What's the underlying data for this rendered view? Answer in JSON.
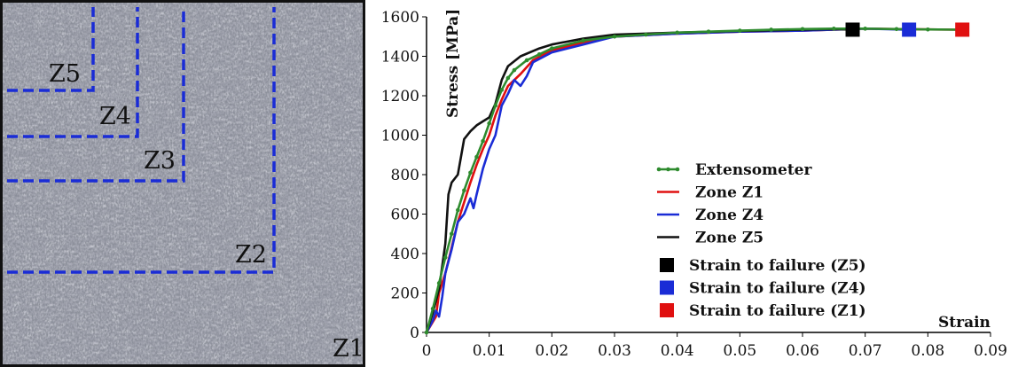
{
  "micrograph": {
    "zone_labels": [
      "Z5",
      "Z4",
      "Z3",
      "Z2",
      "Z1"
    ],
    "zone_line_color": "#1a2cd6"
  },
  "chart_data": {
    "type": "line",
    "xlabel": "Strain",
    "ylabel": "Stress [MPa]",
    "xlim": [
      0,
      0.09
    ],
    "ylim": [
      0,
      1600
    ],
    "x_ticks": [
      "0",
      "0.01",
      "0.02",
      "0.03",
      "0.04",
      "0.05",
      "0.06",
      "0.07",
      "0.08",
      "0.09"
    ],
    "y_ticks": [
      "0",
      "200",
      "400",
      "600",
      "800",
      "1000",
      "1200",
      "1400",
      "1600"
    ],
    "x_tick_values": [
      0,
      0.01,
      0.02,
      0.03,
      0.04,
      0.05,
      0.06,
      0.07,
      0.08,
      0.09
    ],
    "y_tick_values": [
      0,
      200,
      400,
      600,
      800,
      1000,
      1200,
      1400,
      1600
    ],
    "legend_position": "lower-center",
    "series": [
      {
        "name": "Extensometer",
        "color": "#2e8b2e",
        "markers": true,
        "points": [
          [
            0,
            0
          ],
          [
            0.001,
            120
          ],
          [
            0.002,
            250
          ],
          [
            0.003,
            380
          ],
          [
            0.004,
            500
          ],
          [
            0.005,
            620
          ],
          [
            0.006,
            720
          ],
          [
            0.007,
            810
          ],
          [
            0.008,
            890
          ],
          [
            0.009,
            970
          ],
          [
            0.01,
            1060
          ],
          [
            0.011,
            1150
          ],
          [
            0.012,
            1230
          ],
          [
            0.013,
            1290
          ],
          [
            0.014,
            1330
          ],
          [
            0.016,
            1380
          ],
          [
            0.018,
            1410
          ],
          [
            0.02,
            1440
          ],
          [
            0.025,
            1480
          ],
          [
            0.03,
            1500
          ],
          [
            0.035,
            1510
          ],
          [
            0.04,
            1520
          ],
          [
            0.045,
            1525
          ],
          [
            0.05,
            1530
          ],
          [
            0.055,
            1535
          ],
          [
            0.06,
            1538
          ],
          [
            0.065,
            1540
          ],
          [
            0.07,
            1540
          ],
          [
            0.075,
            1538
          ],
          [
            0.08,
            1536
          ],
          [
            0.085,
            1535
          ]
        ]
      },
      {
        "name": "Zone Z1",
        "color": "#e01010",
        "markers": false,
        "points": [
          [
            0,
            0
          ],
          [
            0.0015,
            80
          ],
          [
            0.002,
            200
          ],
          [
            0.003,
            300
          ],
          [
            0.004,
            430
          ],
          [
            0.005,
            560
          ],
          [
            0.006,
            660
          ],
          [
            0.007,
            760
          ],
          [
            0.008,
            850
          ],
          [
            0.009,
            930
          ],
          [
            0.01,
            1000
          ],
          [
            0.011,
            1100
          ],
          [
            0.012,
            1180
          ],
          [
            0.013,
            1250
          ],
          [
            0.015,
            1310
          ],
          [
            0.017,
            1380
          ],
          [
            0.02,
            1430
          ],
          [
            0.025,
            1470
          ],
          [
            0.03,
            1500
          ],
          [
            0.04,
            1515
          ],
          [
            0.05,
            1525
          ],
          [
            0.06,
            1530
          ],
          [
            0.065,
            1535
          ],
          [
            0.07,
            1540
          ],
          [
            0.075,
            1538
          ],
          [
            0.08,
            1536
          ],
          [
            0.085,
            1535
          ]
        ]
      },
      {
        "name": "Zone Z4",
        "color": "#1a2cd6",
        "markers": false,
        "points": [
          [
            0,
            0
          ],
          [
            0.001,
            60
          ],
          [
            0.0015,
            110
          ],
          [
            0.002,
            80
          ],
          [
            0.0025,
            180
          ],
          [
            0.003,
            300
          ],
          [
            0.004,
            420
          ],
          [
            0.005,
            560
          ],
          [
            0.006,
            600
          ],
          [
            0.007,
            680
          ],
          [
            0.0075,
            630
          ],
          [
            0.008,
            700
          ],
          [
            0.009,
            830
          ],
          [
            0.01,
            930
          ],
          [
            0.011,
            1000
          ],
          [
            0.012,
            1150
          ],
          [
            0.013,
            1210
          ],
          [
            0.014,
            1280
          ],
          [
            0.015,
            1250
          ],
          [
            0.016,
            1300
          ],
          [
            0.017,
            1370
          ],
          [
            0.02,
            1420
          ],
          [
            0.025,
            1460
          ],
          [
            0.03,
            1500
          ],
          [
            0.04,
            1515
          ],
          [
            0.05,
            1525
          ],
          [
            0.06,
            1530
          ],
          [
            0.065,
            1535
          ],
          [
            0.07,
            1540
          ],
          [
            0.077,
            1535
          ]
        ]
      },
      {
        "name": "Zone Z5",
        "color": "#111111",
        "markers": false,
        "points": [
          [
            0,
            0
          ],
          [
            0.001,
            100
          ],
          [
            0.002,
            220
          ],
          [
            0.003,
            450
          ],
          [
            0.0035,
            700
          ],
          [
            0.004,
            760
          ],
          [
            0.005,
            800
          ],
          [
            0.006,
            980
          ],
          [
            0.007,
            1020
          ],
          [
            0.008,
            1050
          ],
          [
            0.009,
            1070
          ],
          [
            0.01,
            1090
          ],
          [
            0.011,
            1160
          ],
          [
            0.012,
            1280
          ],
          [
            0.013,
            1350
          ],
          [
            0.015,
            1400
          ],
          [
            0.018,
            1440
          ],
          [
            0.02,
            1460
          ],
          [
            0.025,
            1490
          ],
          [
            0.03,
            1510
          ],
          [
            0.04,
            1520
          ],
          [
            0.05,
            1528
          ],
          [
            0.06,
            1535
          ],
          [
            0.065,
            1538
          ],
          [
            0.068,
            1535
          ]
        ]
      }
    ],
    "failure_markers": [
      {
        "name": "Strain to failure (Z5)",
        "color": "#000000",
        "x": 0.068,
        "y": 1535
      },
      {
        "name": "Strain to failure (Z4)",
        "color": "#1a2cd6",
        "x": 0.077,
        "y": 1535
      },
      {
        "name": "Strain to failure (Z1)",
        "color": "#e01010",
        "x": 0.0855,
        "y": 1535
      }
    ]
  }
}
